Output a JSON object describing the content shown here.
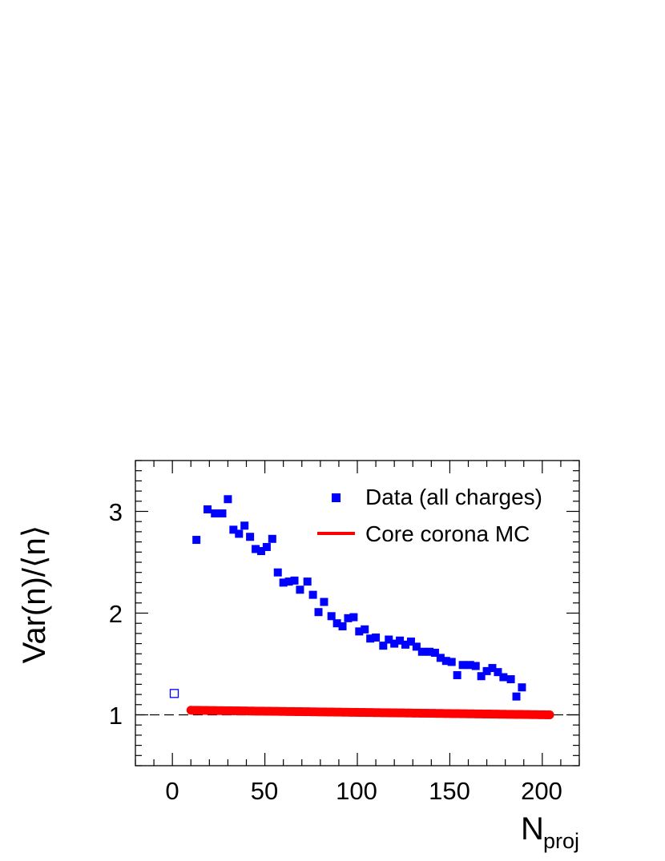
{
  "chart_data": {
    "type": "scatter",
    "xlabel": "N",
    "xlabel_sub": "proj",
    "ylabel": "Var(n)/⟨n⟩",
    "xlim": [
      -20,
      220
    ],
    "ylim": [
      0.5,
      3.5
    ],
    "x_ticks": [
      "0",
      "50",
      "100",
      "150",
      "200"
    ],
    "y_ticks": [
      "1",
      "2",
      "3"
    ],
    "reference_line": 1,
    "legend_position": "top-right",
    "series": [
      {
        "name": "Data (all charges)",
        "color": "#0000ff",
        "marker": "filled-square",
        "points": [
          [
            13,
            2.72
          ],
          [
            19,
            3.02
          ],
          [
            23,
            2.98
          ],
          [
            27,
            2.98
          ],
          [
            30,
            3.12
          ],
          [
            33,
            2.82
          ],
          [
            36,
            2.78
          ],
          [
            39,
            2.86
          ],
          [
            42,
            2.75
          ],
          [
            45,
            2.63
          ],
          [
            48,
            2.61
          ],
          [
            51,
            2.65
          ],
          [
            54,
            2.73
          ],
          [
            57,
            2.4
          ],
          [
            60,
            2.3
          ],
          [
            63,
            2.31
          ],
          [
            66,
            2.32
          ],
          [
            69,
            2.23
          ],
          [
            73,
            2.31
          ],
          [
            76,
            2.18
          ],
          [
            79,
            2.01
          ],
          [
            82,
            2.11
          ],
          [
            86,
            1.97
          ],
          [
            89,
            1.9
          ],
          [
            92,
            1.87
          ],
          [
            95,
            1.95
          ],
          [
            98,
            1.96
          ],
          [
            101,
            1.82
          ],
          [
            104,
            1.84
          ],
          [
            107,
            1.75
          ],
          [
            110,
            1.76
          ],
          [
            114,
            1.68
          ],
          [
            117,
            1.74
          ],
          [
            120,
            1.7
          ],
          [
            123,
            1.73
          ],
          [
            126,
            1.69
          ],
          [
            129,
            1.72
          ],
          [
            132,
            1.67
          ],
          [
            135,
            1.62
          ],
          [
            139,
            1.62
          ],
          [
            142,
            1.61
          ],
          [
            145,
            1.56
          ],
          [
            148,
            1.53
          ],
          [
            151,
            1.52
          ],
          [
            154,
            1.39
          ],
          [
            157,
            1.49
          ],
          [
            161,
            1.49
          ],
          [
            164,
            1.48
          ],
          [
            167,
            1.38
          ],
          [
            170,
            1.43
          ],
          [
            173,
            1.46
          ],
          [
            176,
            1.42
          ],
          [
            179,
            1.37
          ],
          [
            183,
            1.35
          ],
          [
            186,
            1.18
          ],
          [
            189,
            1.27
          ]
        ]
      },
      {
        "name": "",
        "color": "#0000ff",
        "marker": "open-square",
        "points": [
          [
            1,
            1.21
          ]
        ]
      },
      {
        "name": "Core corona MC",
        "color": "#ff0000",
        "marker": "filled-circle",
        "x_range": [
          10,
          204
        ],
        "y_start": 1.045,
        "y_end": 1.0
      }
    ]
  }
}
